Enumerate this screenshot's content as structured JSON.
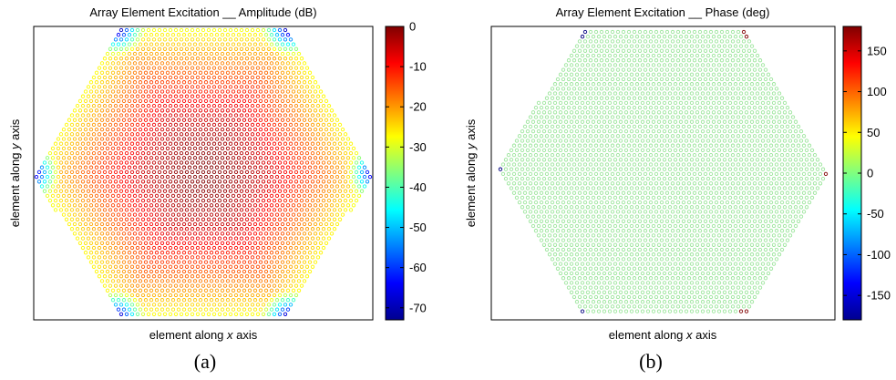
{
  "captions": [
    "(a)",
    "(b)"
  ],
  "chart_data": [
    {
      "type": "scatter",
      "title": "Array Element Excitation __ Amplitude (dB)",
      "xlabel_prefix": "element along ",
      "xlabel_var": "x",
      "xlabel_suffix": " axis",
      "ylabel_prefix": "element along ",
      "ylabel_var": "y",
      "ylabel_suffix": " axis",
      "colorbar": {
        "colormap": "jet",
        "range": [
          -73,
          0
        ],
        "ticks": [
          0,
          -10,
          -20,
          -30,
          -40,
          -50,
          -60,
          -70
        ],
        "tick_labels": [
          "0",
          "-10",
          "-20",
          "-30",
          "-40",
          "-50",
          "-60",
          "-70"
        ]
      },
      "layout": "hexagonal array of elements, hexagon flat at top and bottom",
      "center_value": 0,
      "edge_value": -28,
      "corner_values": [
        -45,
        -55,
        -73
      ],
      "grid": false
    },
    {
      "type": "scatter",
      "title": "Array Element Excitation __ Phase (deg)",
      "xlabel_prefix": "element along ",
      "xlabel_var": "x",
      "xlabel_suffix": " axis",
      "ylabel_prefix": "element along ",
      "ylabel_var": "y",
      "ylabel_suffix": " axis",
      "colorbar": {
        "colormap": "jet",
        "range": [
          -180,
          180
        ],
        "ticks": [
          150,
          100,
          50,
          0,
          -50,
          -100,
          -150
        ],
        "tick_labels": [
          "150",
          "100",
          "50",
          "0",
          "-50",
          "-100",
          "-150"
        ]
      },
      "layout": "hexagonal array of elements, hexagon flat at top and bottom",
      "base_value": 0,
      "corner_values": [
        180,
        -180
      ],
      "grid": false
    }
  ]
}
